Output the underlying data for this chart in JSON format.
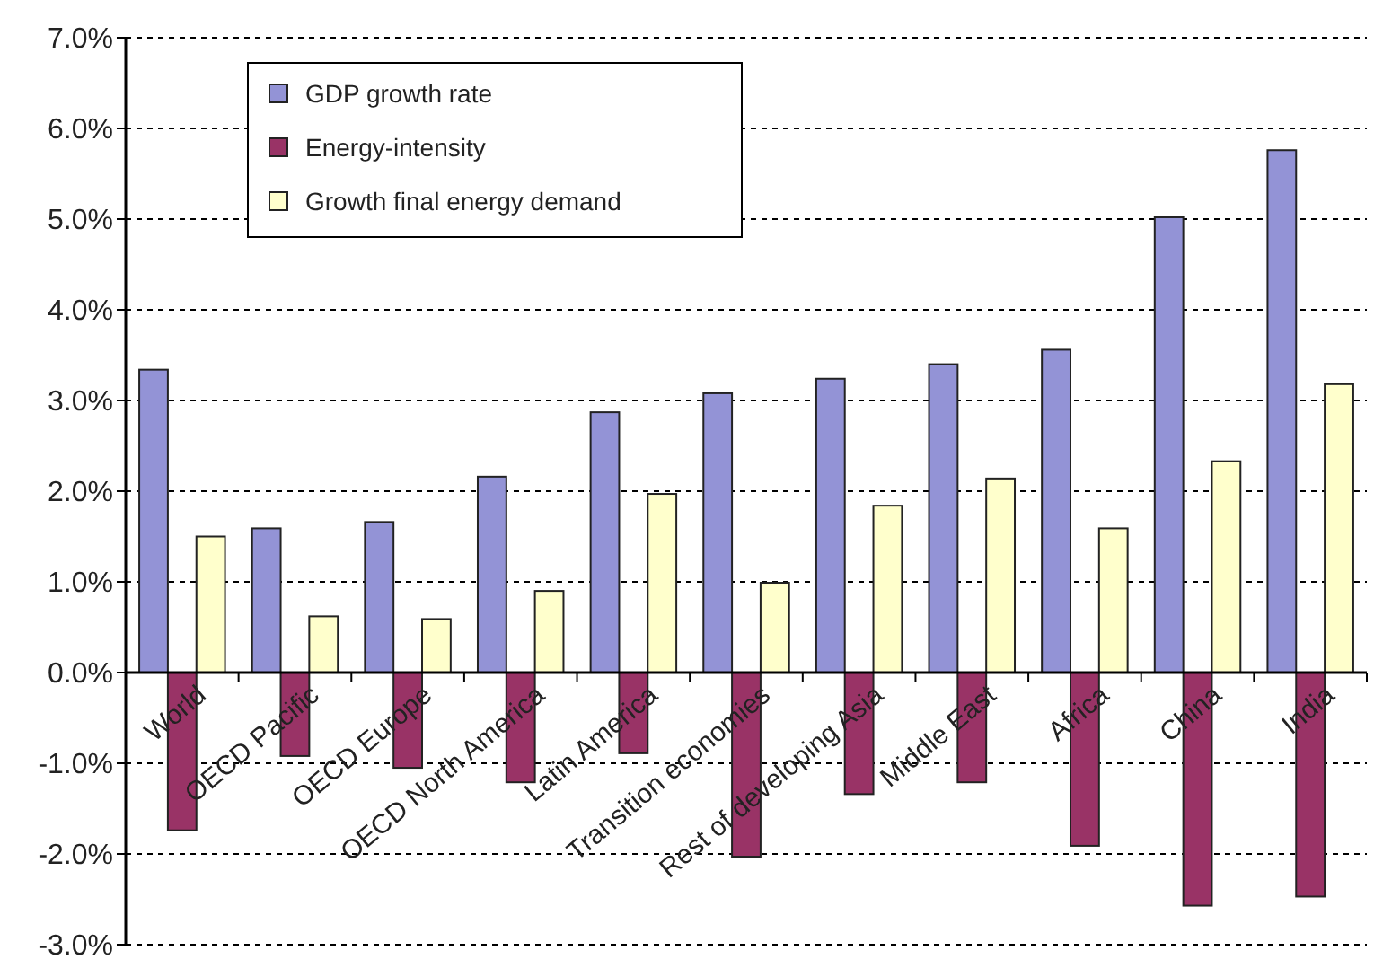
{
  "chart_data": {
    "type": "bar",
    "categories": [
      "World",
      "OECD Pacific",
      "OECD Europe",
      "OECD North America",
      "Latin America",
      "Transition economies",
      "Rest of developing Asia",
      "Middle East",
      "Africa",
      "China",
      "India"
    ],
    "series": [
      {
        "name": "GDP growth rate",
        "color": "#9393d6",
        "values": [
          3.34,
          1.59,
          1.66,
          2.16,
          2.87,
          3.08,
          3.24,
          3.4,
          3.56,
          5.02,
          5.76
        ]
      },
      {
        "name": "Energy-intensity",
        "color": "#993366",
        "values": [
          -1.74,
          -0.92,
          -1.05,
          -1.21,
          -0.89,
          -2.03,
          -1.34,
          -1.21,
          -1.91,
          -2.57,
          -2.47
        ]
      },
      {
        "name": "Growth final energy demand",
        "color": "#ffffcc",
        "values": [
          1.5,
          0.62,
          0.59,
          0.9,
          1.97,
          0.99,
          1.84,
          2.14,
          1.59,
          2.33,
          3.18
        ]
      }
    ],
    "ylim": [
      -3,
      7
    ],
    "yticks": [
      {
        "value": -3,
        "label": "-3.0%"
      },
      {
        "value": -2,
        "label": "-2.0%"
      },
      {
        "value": -1,
        "label": "-1.0%"
      },
      {
        "value": 0,
        "label": "0.0%"
      },
      {
        "value": 1,
        "label": "1.0%"
      },
      {
        "value": 2,
        "label": "2.0%"
      },
      {
        "value": 3,
        "label": "3.0%"
      },
      {
        "value": 4,
        "label": "4.0%"
      },
      {
        "value": 5,
        "label": "5.0%"
      },
      {
        "value": 6,
        "label": "6.0%"
      },
      {
        "value": 7,
        "label": "7.0%"
      }
    ],
    "grid": "y",
    "legend": "top left"
  }
}
